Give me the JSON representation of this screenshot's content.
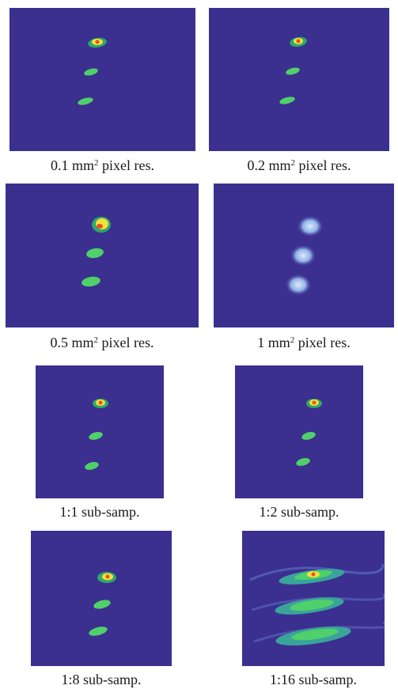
{
  "panels": [
    {
      "id": "p1",
      "caption_main": "0.1 mm",
      "caption_sup": "2",
      "caption_rest": " pixel res."
    },
    {
      "id": "p2",
      "caption_main": "0.2 mm",
      "caption_sup": "2",
      "caption_rest": " pixel res."
    },
    {
      "id": "p3",
      "caption_main": "0.5 mm",
      "caption_sup": "2",
      "caption_rest": " pixel res."
    },
    {
      "id": "p4",
      "caption_main": "1 mm",
      "caption_sup": "2",
      "caption_rest": " pixel res."
    },
    {
      "id": "p5",
      "caption": "1:1 sub-samp."
    },
    {
      "id": "p6",
      "caption": "1:2 sub-samp."
    },
    {
      "id": "p7",
      "caption": "1:8 sub-samp."
    },
    {
      "id": "p8",
      "caption": "1:16 sub-samp."
    }
  ],
  "colors": {
    "background": "#3b2f8f",
    "blob": "#4fd06a",
    "hot": "#f2e13a",
    "peak": "#e8502a",
    "diffuse": "#b9d3f0"
  }
}
